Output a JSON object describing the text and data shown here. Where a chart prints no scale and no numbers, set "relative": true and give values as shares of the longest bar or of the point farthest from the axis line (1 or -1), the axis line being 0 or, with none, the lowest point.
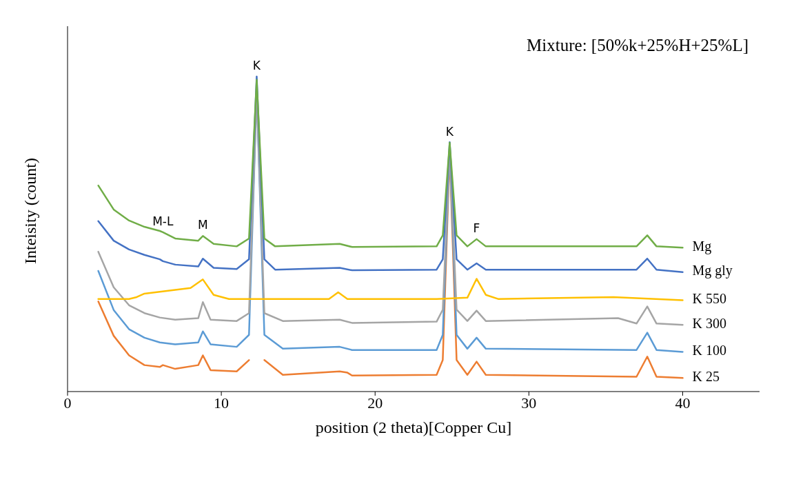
{
  "chart_data": {
    "type": "line",
    "relative": true,
    "title": "Mixture:  [50%k+25%H+25%L]",
    "xlabel": "position (2 theta)[Copper Cu]",
    "ylabel": "Inteisity (count)",
    "xlim": [
      0,
      45
    ],
    "xticks": [
      0,
      10,
      20,
      30,
      40
    ],
    "grid": false,
    "legend": false,
    "marker": "none",
    "line_style": "solid",
    "annotations": [
      {
        "text": "M-L",
        "x": 6.2,
        "y": 0.506
      },
      {
        "text": "M",
        "x": 8.8,
        "y": 0.494
      },
      {
        "text": "K",
        "x": 12.3,
        "y": 1.0
      },
      {
        "text": "K",
        "x": 24.85,
        "y": 0.79
      },
      {
        "text": "F",
        "x": 26.6,
        "y": 0.484
      }
    ],
    "series": [
      {
        "name": "K 25",
        "color": "#ed7d31",
        "x": [
          2,
          3,
          4,
          5,
          6,
          6.2,
          7,
          8.5,
          8.8,
          9.3,
          11,
          11.8,
          12.3,
          12.8,
          14,
          17.7,
          18.2,
          18.5,
          24,
          24.4,
          24.85,
          25.3,
          26,
          26.6,
          27.2,
          37,
          37.7,
          38.3,
          40
        ],
        "values": [
          0.286,
          0.177,
          0.115,
          0.084,
          0.078,
          0.084,
          0.072,
          0.084,
          0.115,
          0.068,
          0.064,
          0.1,
          null,
          0.1,
          0.053,
          0.064,
          0.06,
          0.051,
          0.053,
          0.1,
          0.76,
          0.1,
          0.053,
          0.095,
          0.053,
          0.047,
          0.111,
          0.047,
          0.043
        ]
      },
      {
        "name": "K 100",
        "color": "#5b9bd5",
        "x": [
          2,
          3,
          4,
          5,
          6,
          7,
          8.5,
          8.8,
          9.3,
          11,
          11.8,
          12.3,
          12.8,
          14,
          17.7,
          18.5,
          24,
          24.4,
          24.85,
          25.3,
          26,
          26.6,
          27.2,
          37,
          37.7,
          38.3,
          40
        ],
        "values": [
          0.383,
          0.259,
          0.198,
          0.171,
          0.156,
          0.15,
          0.156,
          0.191,
          0.15,
          0.142,
          0.18,
          0.95,
          0.18,
          0.136,
          0.142,
          0.132,
          0.132,
          0.18,
          0.77,
          0.18,
          0.136,
          0.171,
          0.136,
          0.132,
          0.187,
          0.132,
          0.126
        ]
      },
      {
        "name": "K 300",
        "color": "#a5a5a5",
        "x": [
          2,
          3,
          4,
          5,
          6,
          7,
          8.5,
          8.8,
          9.3,
          11,
          11.8,
          12.3,
          12.8,
          14,
          17.7,
          18.5,
          24,
          24.4,
          24.85,
          25.3,
          26,
          26.6,
          27.2,
          35.8,
          37,
          37.7,
          38.3,
          40
        ],
        "values": [
          0.444,
          0.331,
          0.274,
          0.249,
          0.235,
          0.228,
          0.233,
          0.284,
          0.228,
          0.224,
          0.249,
          0.95,
          0.249,
          0.224,
          0.228,
          0.218,
          0.222,
          0.26,
          0.77,
          0.26,
          0.224,
          0.257,
          0.224,
          0.233,
          0.216,
          0.27,
          0.216,
          0.212
        ]
      },
      {
        "name": "K 550",
        "color": "#ffc000",
        "x": [
          2,
          4,
          4.5,
          5,
          6,
          7,
          8,
          8.8,
          9.5,
          10.5,
          17,
          17.6,
          18.2,
          24,
          26,
          26.6,
          27.2,
          28,
          35.5,
          40
        ],
        "values": [
          0.294,
          0.294,
          0.3,
          0.311,
          0.317,
          0.323,
          0.329,
          0.356,
          0.307,
          0.294,
          0.294,
          0.315,
          0.294,
          0.294,
          0.298,
          0.358,
          0.307,
          0.294,
          0.3,
          0.29
        ]
      },
      {
        "name": "Mg gly",
        "color": "#4472c4",
        "x": [
          2,
          3,
          4,
          5,
          6,
          6.2,
          7,
          8.5,
          8.8,
          9.5,
          11,
          11.8,
          12.3,
          12.8,
          13.5,
          17.7,
          18.5,
          24,
          24.4,
          24.85,
          25.3,
          26,
          26.6,
          27.2,
          37,
          37.7,
          38.3,
          40
        ],
        "values": [
          0.541,
          0.479,
          0.451,
          0.434,
          0.42,
          0.414,
          0.403,
          0.397,
          0.422,
          0.393,
          0.389,
          0.42,
          1.0,
          0.42,
          0.387,
          0.393,
          0.385,
          0.387,
          0.42,
          0.792,
          0.42,
          0.387,
          0.407,
          0.387,
          0.387,
          0.422,
          0.387,
          0.379
        ]
      },
      {
        "name": "Mg",
        "color": "#70ad47",
        "x": [
          2,
          3,
          4,
          5,
          6,
          6.2,
          7,
          8.5,
          8.8,
          9.5,
          11,
          11.8,
          12.3,
          12.8,
          13.5,
          17.7,
          18.5,
          24,
          24.4,
          24.85,
          25.3,
          26,
          26.6,
          27.2,
          37,
          37.7,
          38.3,
          40
        ],
        "values": [
          0.654,
          0.578,
          0.543,
          0.523,
          0.51,
          0.506,
          0.486,
          0.479,
          0.494,
          0.469,
          0.461,
          0.486,
          0.99,
          0.486,
          0.461,
          0.469,
          0.459,
          0.461,
          0.496,
          0.79,
          0.496,
          0.461,
          0.484,
          0.461,
          0.461,
          0.496,
          0.461,
          0.457
        ]
      }
    ]
  }
}
